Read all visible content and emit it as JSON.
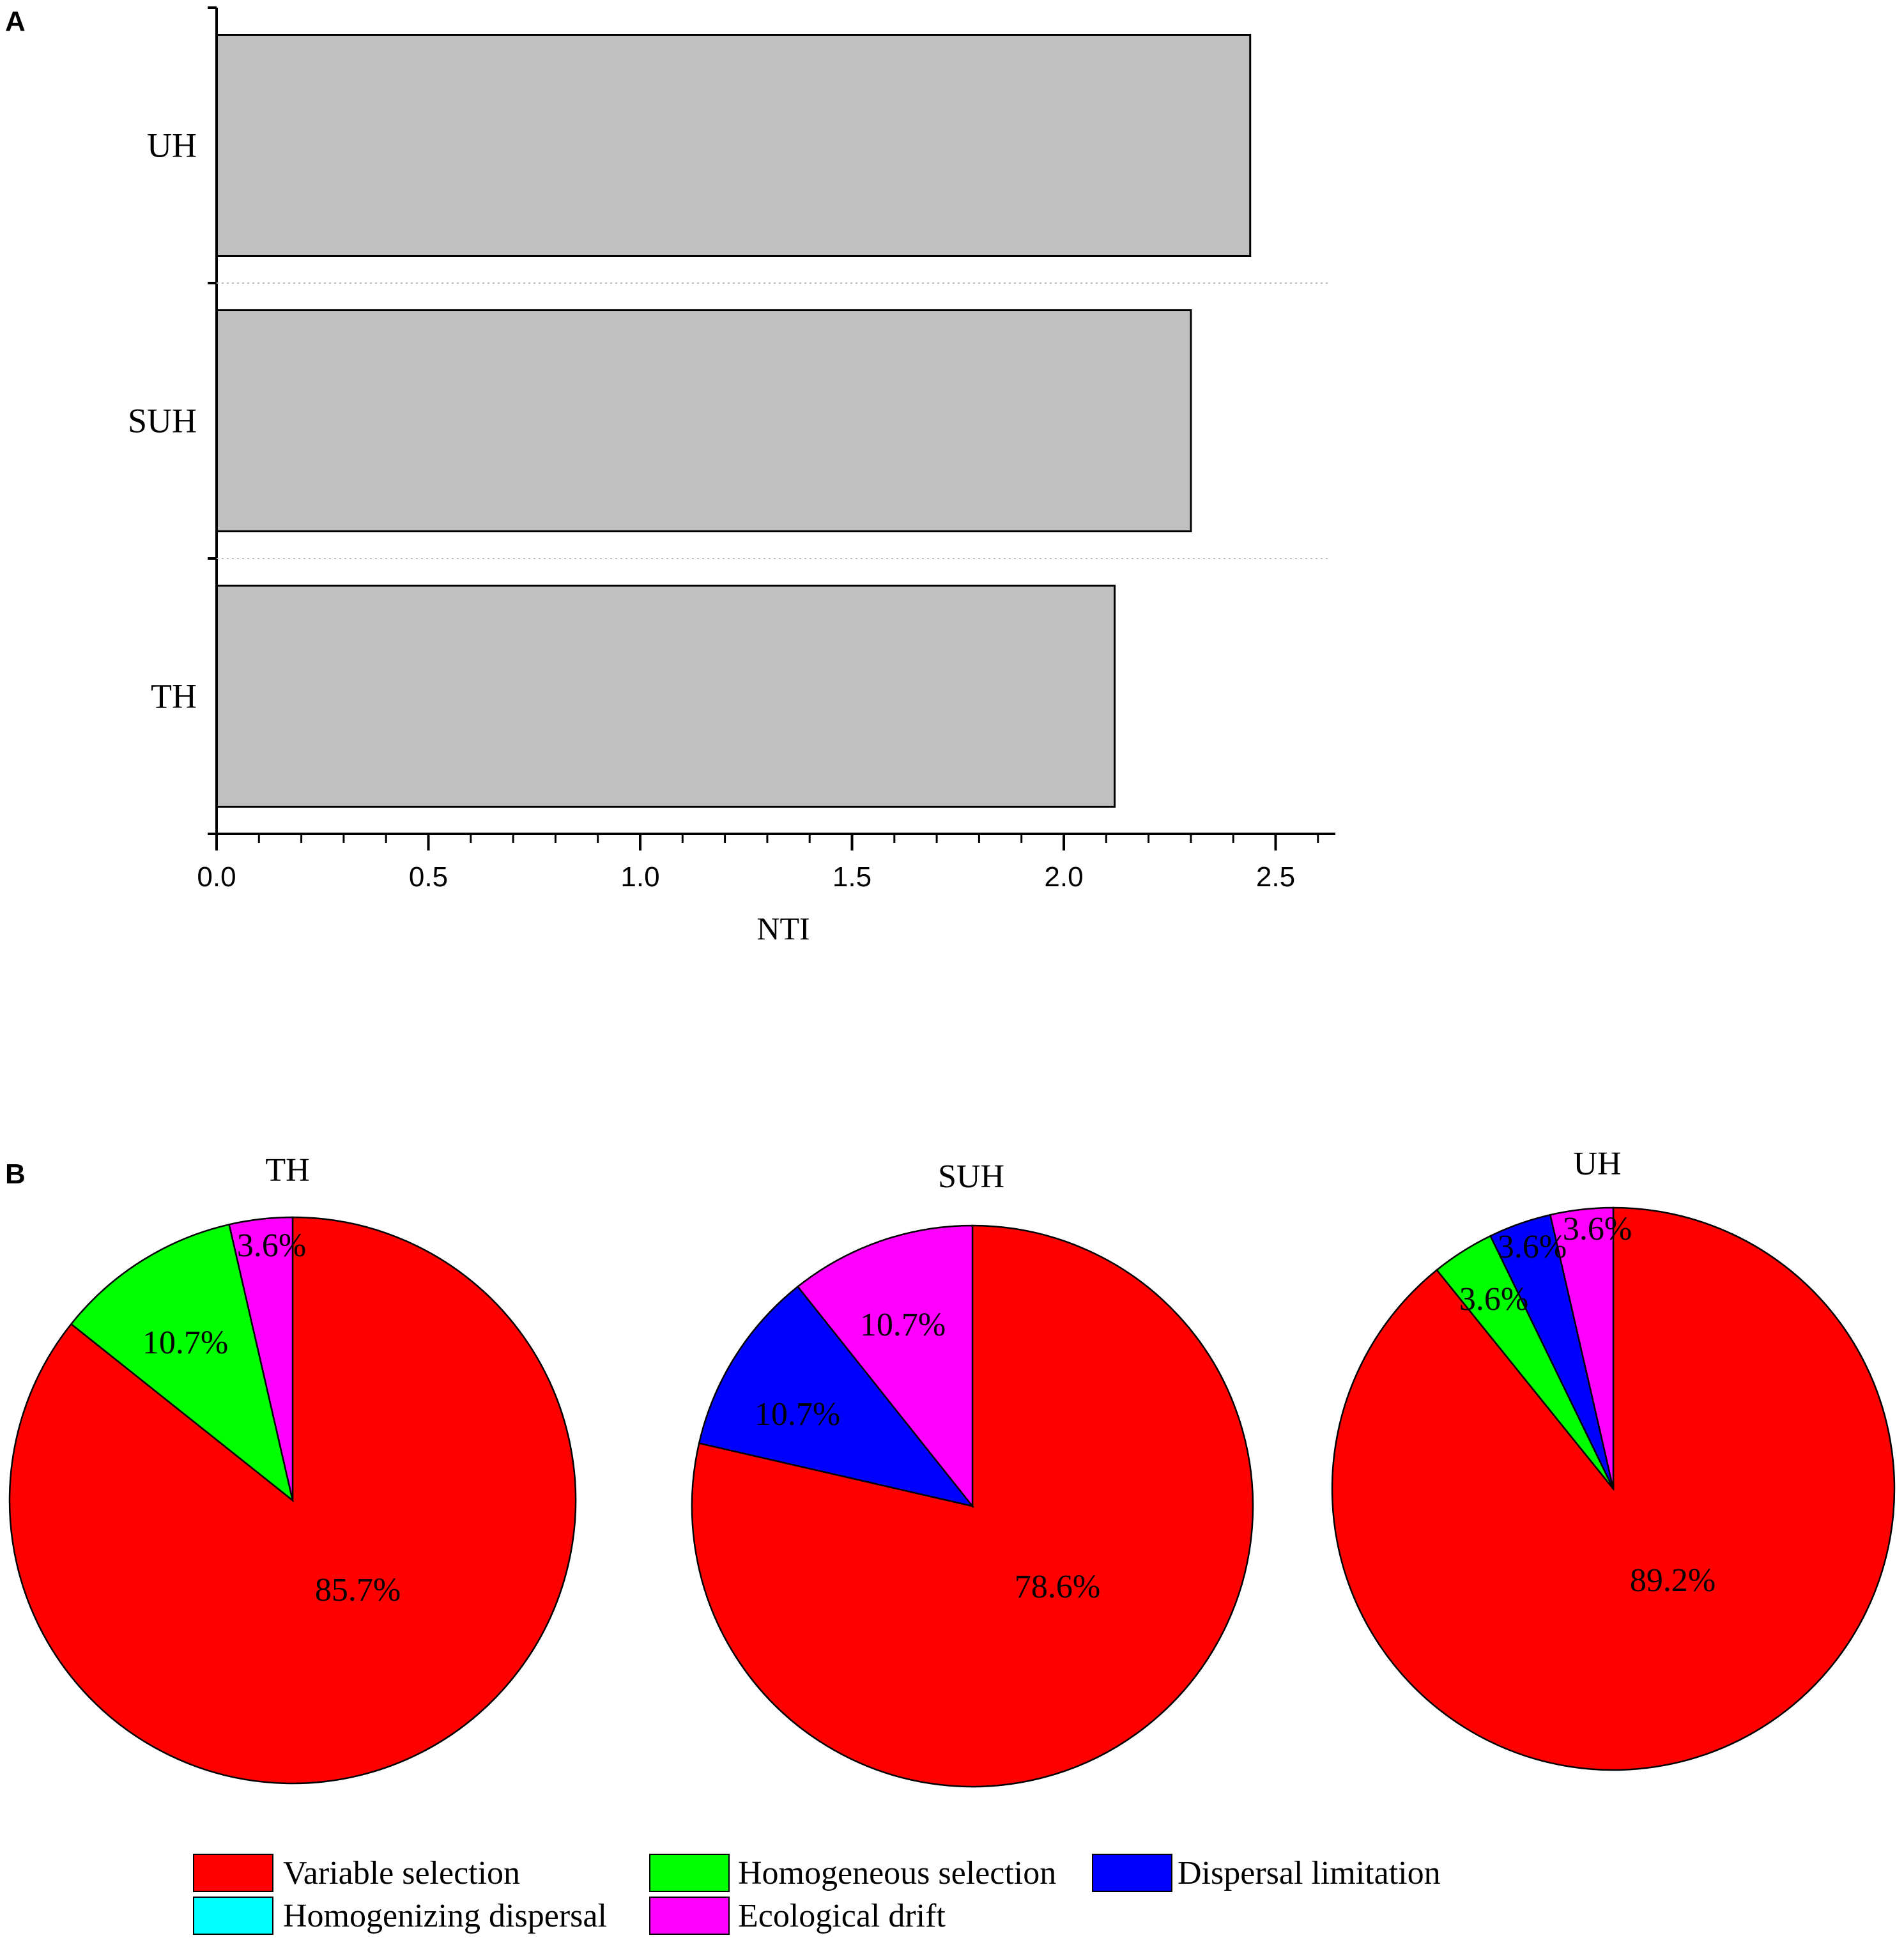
{
  "panel_a": {
    "letter": "A",
    "chart_data": {
      "type": "bar",
      "orientation": "horizontal",
      "categories": [
        "UH",
        "SUH",
        "TH"
      ],
      "values": [
        2.44,
        2.3,
        2.12
      ],
      "xlabel": "NTI",
      "xlim": [
        0,
        2.63
      ],
      "xticks": [
        "0.0",
        "0.5",
        "1.0",
        "1.5",
        "2.0",
        "2.5"
      ],
      "xtick_values": [
        0,
        0.5,
        1.0,
        1.5,
        2.0,
        2.5
      ],
      "grid": "dotted separators between bars",
      "colors": {
        "bar": "#c0c0c0",
        "edge": "#000000"
      }
    }
  },
  "panel_b": {
    "letter": "B",
    "chart_data": [
      {
        "type": "pie",
        "title": "TH",
        "slices": [
          {
            "name": "Variable selection",
            "value": 85.7,
            "label": "85.7%"
          },
          {
            "name": "Homogeneous selection",
            "value": 10.7,
            "label": "10.7%"
          },
          {
            "name": "Ecological drift",
            "value": 3.6,
            "label": "3.6%"
          }
        ]
      },
      {
        "type": "pie",
        "title": "SUH",
        "slices": [
          {
            "name": "Variable selection",
            "value": 78.6,
            "label": "78.6%"
          },
          {
            "name": "Dispersal limitation",
            "value": 10.7,
            "label": "10.7%"
          },
          {
            "name": "Ecological drift",
            "value": 10.7,
            "label": "10.7%"
          }
        ]
      },
      {
        "type": "pie",
        "title": "UH",
        "slices": [
          {
            "name": "Variable selection",
            "value": 89.2,
            "label": "89.2%"
          },
          {
            "name": "Homogeneous selection",
            "value": 3.6,
            "label": "3.6%"
          },
          {
            "name": "Dispersal limitation",
            "value": 3.6,
            "label": "3.6%"
          },
          {
            "name": "Ecological drift",
            "value": 3.6,
            "label": "3.6%"
          }
        ]
      }
    ],
    "legend": {
      "placement": "bottom",
      "items": [
        {
          "name": "Variable selection",
          "color": "#ff0000"
        },
        {
          "name": "Homogeneous selection",
          "color": "#00ff00"
        },
        {
          "name": "Dispersal limitation",
          "color": "#0000ff"
        },
        {
          "name": "Homogenizing dispersal",
          "color": "#00ffff"
        },
        {
          "name": "Ecological drift",
          "color": "#ff00ff"
        }
      ]
    }
  }
}
